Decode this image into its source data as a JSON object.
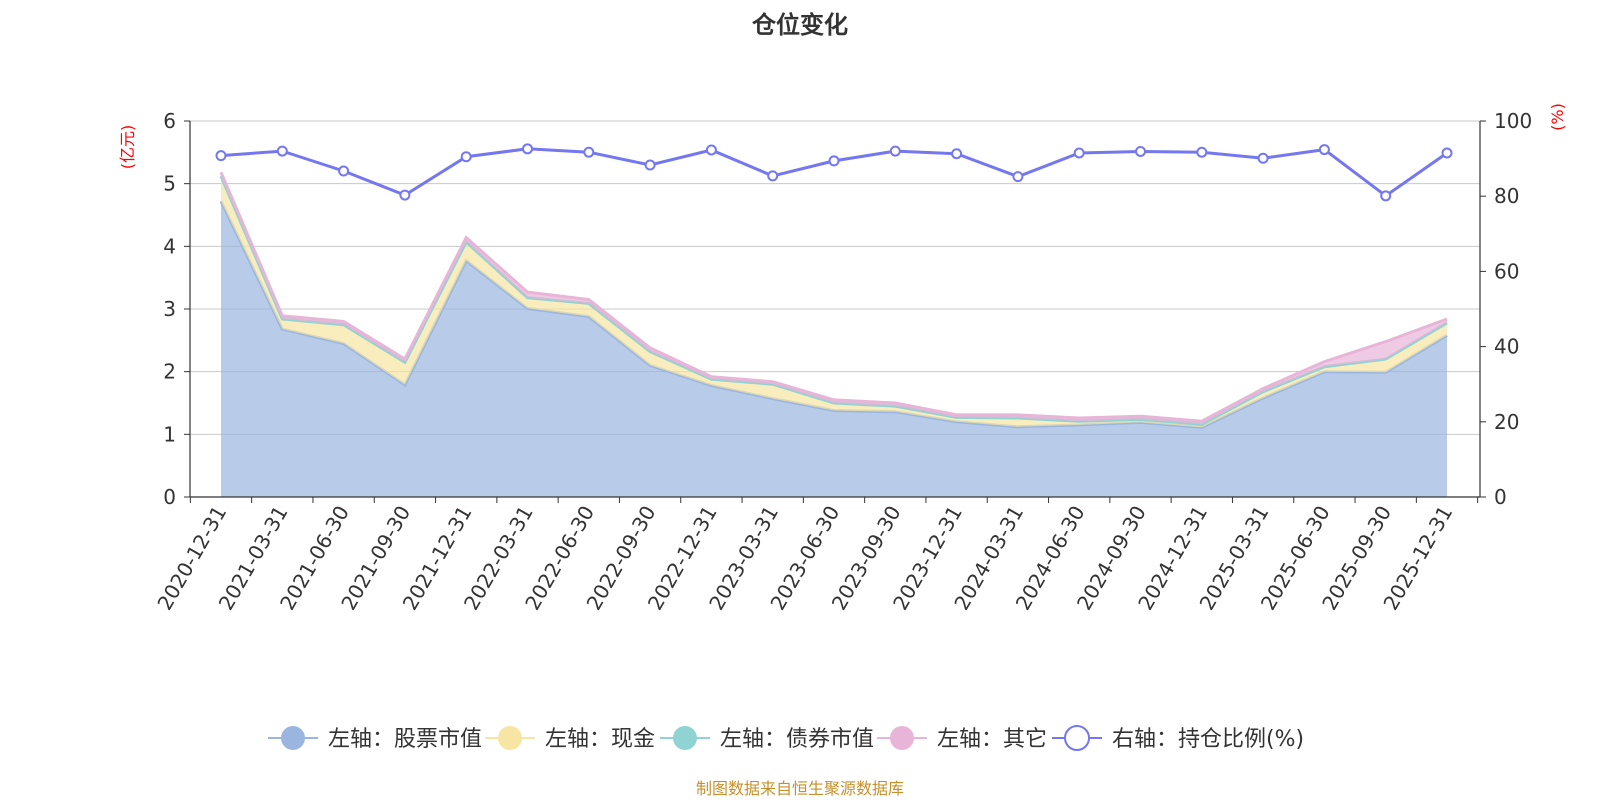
{
  "chart_data": {
    "type": "area",
    "title": "仓位变化",
    "left_unit": "(亿元)",
    "right_unit": "(%)",
    "ylim_left": [
      0,
      6
    ],
    "yticks_left": [
      "0",
      "1",
      "2",
      "3",
      "4",
      "5",
      "6"
    ],
    "ylim_right": [
      0,
      100
    ],
    "yticks_right": [
      "0",
      "20",
      "40",
      "60",
      "80",
      "100"
    ],
    "grid": true,
    "legend_position": "bottom",
    "x": [
      "2020-12-31",
      "2021-03-31",
      "2021-06-30",
      "2021-09-30",
      "2021-12-31",
      "2022-03-31",
      "2022-06-30",
      "2022-09-30",
      "2022-12-31",
      "2023-03-31",
      "2023-06-30",
      "2023-09-30",
      "2023-12-31",
      "2024-03-31",
      "2024-06-30",
      "2024-09-30",
      "2024-12-31",
      "2025-03-31",
      "2025-06-30",
      "2025-09-30",
      "2025-12-31"
    ],
    "series": [
      {
        "name": "左轴：股票市值",
        "axis": "left",
        "kind": "stacked-area",
        "color": "#9ab6e0",
        "values": [
          4.72,
          2.68,
          2.45,
          1.79,
          3.77,
          3.01,
          2.88,
          2.1,
          1.78,
          1.57,
          1.38,
          1.36,
          1.2,
          1.12,
          1.15,
          1.19,
          1.11,
          1.58,
          2.0,
          1.99,
          2.58
        ]
      },
      {
        "name": "左轴：现金",
        "axis": "left",
        "kind": "stacked-area",
        "color": "#f7e6a3",
        "values": [
          0.4,
          0.16,
          0.3,
          0.36,
          0.3,
          0.17,
          0.21,
          0.22,
          0.1,
          0.23,
          0.12,
          0.09,
          0.07,
          0.14,
          0.06,
          0.05,
          0.05,
          0.1,
          0.08,
          0.21,
          0.2
        ]
      },
      {
        "name": "左轴：债券市值",
        "axis": "left",
        "kind": "stacked-area",
        "color": "#8fd3d3",
        "values": [
          0,
          0,
          0,
          0,
          0,
          0,
          0,
          0,
          0,
          0,
          0,
          0,
          0,
          0,
          0,
          0,
          0,
          0,
          0,
          0,
          0
        ]
      },
      {
        "name": "左轴：其它",
        "axis": "left",
        "kind": "stacked-area",
        "color": "#e8b4d8",
        "values": [
          0.06,
          0.05,
          0.05,
          0.05,
          0.07,
          0.09,
          0.06,
          0.06,
          0.04,
          0.04,
          0.05,
          0.05,
          0.04,
          0.05,
          0.05,
          0.05,
          0.05,
          0.05,
          0.08,
          0.28,
          0.06
        ]
      },
      {
        "name": "右轴：持仓比例(%)",
        "axis": "right",
        "kind": "line",
        "color": "#7477f0",
        "values": [
          90.8,
          92.0,
          86.7,
          80.3,
          90.5,
          92.6,
          91.7,
          88.3,
          92.3,
          85.4,
          89.4,
          92.0,
          91.3,
          85.2,
          91.5,
          91.9,
          91.7,
          90.1,
          92.4,
          80.1,
          91.5
        ]
      }
    ]
  },
  "source": "制图数据来自恒生聚源数据库"
}
